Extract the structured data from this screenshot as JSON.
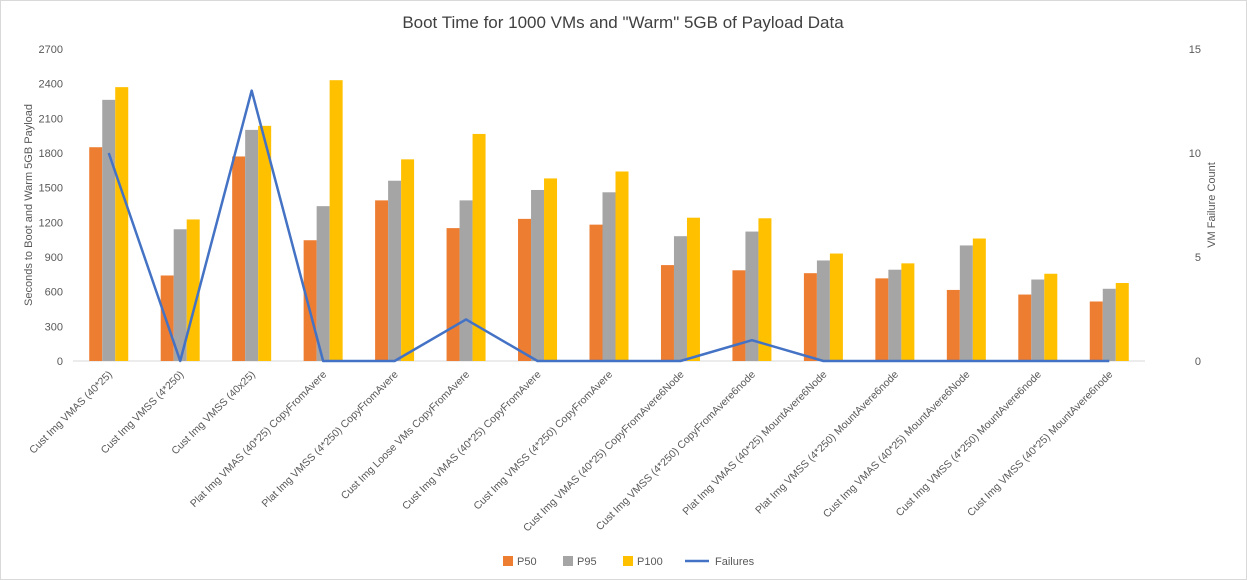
{
  "chart_data": {
    "type": "bar",
    "title": "Boot Time for 1000 VMs and \"Warm\" 5GB of Payload Data",
    "ylabel": "Seconds to Boot and Warm 5GB Payload",
    "y2label": "VM Failure Count",
    "ylim": [
      0,
      2700
    ],
    "yticks": [
      0,
      300,
      600,
      900,
      1200,
      1500,
      1800,
      2100,
      2400,
      2700
    ],
    "y2lim": [
      0,
      15
    ],
    "y2ticks": [
      0,
      5,
      10,
      15
    ],
    "grid": false,
    "legend_position": "bottom",
    "categories": [
      "Cust Img VMAS (40*25)",
      "Cust Img VMSS (4*250)",
      "Cust Img VMSS (40x25)",
      "Plat Img VMAS (40*25) CopyFromAvere",
      "Plat Img VMSS  (4*250) CopyFromAvere",
      "Cust Img Loose VMs CopyFromAvere",
      "Cust Img VMAS (40*25) CopyFromAvere",
      "Cust Img VMSS (4*250) CopyFromAvere",
      "Cust Img VMAS (40*25) CopyFromAvere6Node",
      "Cust Img VMSS (4*250) CopyFromAvere6node",
      "Plat Img VMAS (40*25) MountAvere6Node",
      "Plat Img VMSS (4*250) MountAvere6node",
      "Cust Img VMAS (40*25) MountAvere6Node",
      "Cust Img VMSS (4*250) MountAvere6node",
      "Cust Img VMSS (40*25) MountAvere6node"
    ],
    "series": [
      {
        "name": "P50",
        "type": "bar",
        "color": "#ED7D31",
        "values": [
          1850,
          740,
          1770,
          1045,
          1390,
          1150,
          1230,
          1180,
          830,
          785,
          760,
          715,
          615,
          575,
          515
        ]
      },
      {
        "name": "P95",
        "type": "bar",
        "color": "#A5A5A5",
        "values": [
          2260,
          1140,
          2000,
          1340,
          1560,
          1390,
          1480,
          1460,
          1080,
          1120,
          870,
          790,
          1000,
          705,
          625
        ]
      },
      {
        "name": "P100",
        "type": "bar",
        "color": "#FFC000",
        "values": [
          2370,
          1225,
          2035,
          2430,
          1745,
          1965,
          1580,
          1640,
          1240,
          1235,
          930,
          845,
          1060,
          755,
          675
        ]
      },
      {
        "name": "Failures",
        "type": "line",
        "axis": "secondary",
        "color": "#4472C4",
        "values": [
          10,
          0,
          13,
          0,
          0,
          2,
          0,
          0,
          0,
          1,
          0,
          0,
          0,
          0,
          0
        ]
      }
    ]
  }
}
